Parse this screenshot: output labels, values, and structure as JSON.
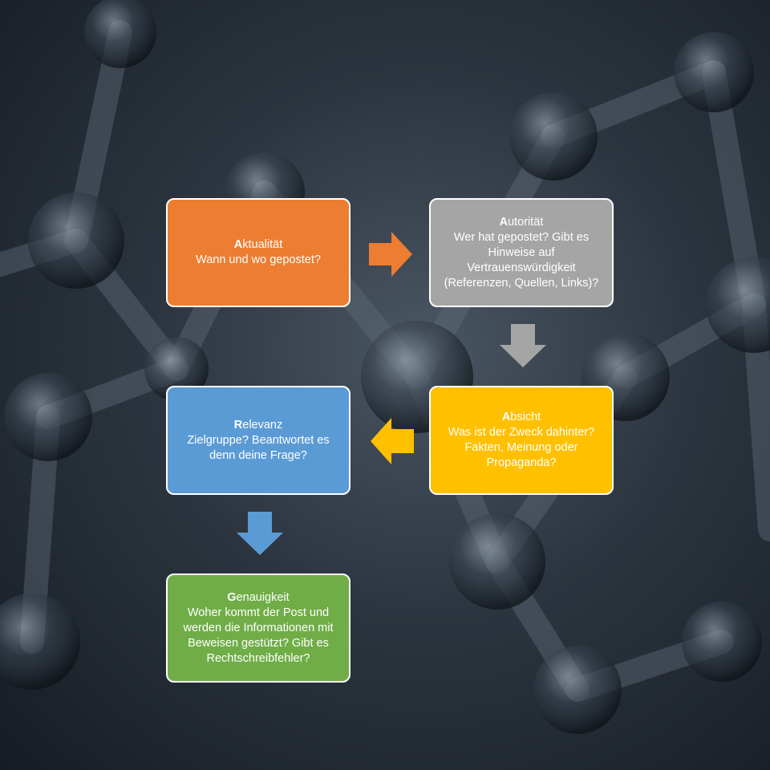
{
  "colors": {
    "orange": "#ED7D31",
    "gray": "#A5A5A5",
    "yellow": "#FFC000",
    "blue": "#5B9BD5",
    "green": "#70AD47"
  },
  "boxes": {
    "aktualitaet": {
      "initial": "A",
      "rest": "ktualität",
      "body": "Wann und wo gepostet?"
    },
    "autoritaet": {
      "initial": "A",
      "rest": "utorität",
      "body": "Wer hat gepostet? Gibt es\nHinweise auf\nVertrauenswürdigkeit\n(Referenzen, Quellen, Links)?"
    },
    "absicht": {
      "initial": "A",
      "rest": "bsicht",
      "body": "Was ist der Zweck dahinter?\nFakten, Meinung oder\nPropaganda?"
    },
    "relevanz": {
      "initial": "R",
      "rest": "elevanz",
      "body": "Zielgruppe? Beantwortet es\ndenn deine Frage?"
    },
    "genauigkeit": {
      "initial": "G",
      "rest": "enauigkeit",
      "body": "Woher kommt der Post und\nwerden die Informationen mit\nBeweisen gestützt? Gibt es\nRechtschreibfehler?"
    }
  },
  "arrows": [
    {
      "name": "arrow-right-orange",
      "direction": "right",
      "color": "#ED7D31"
    },
    {
      "name": "arrow-down-gray",
      "direction": "down",
      "color": "#A5A5A5"
    },
    {
      "name": "arrow-left-yellow",
      "direction": "left",
      "color": "#FFC000"
    },
    {
      "name": "arrow-down-blue",
      "direction": "down",
      "color": "#5B9BD5"
    }
  ]
}
